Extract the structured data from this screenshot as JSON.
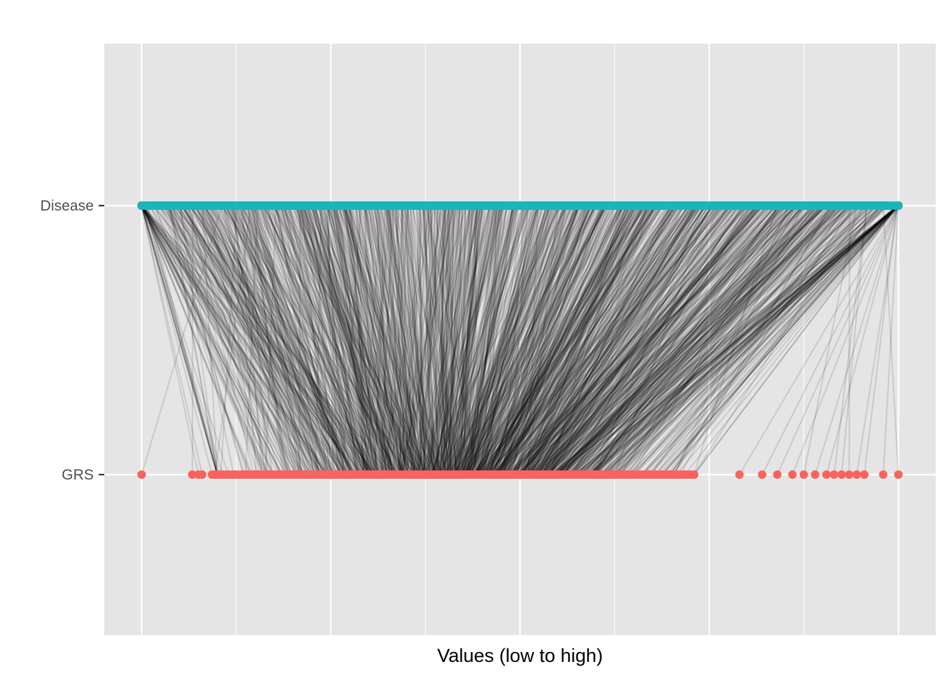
{
  "chart_data": {
    "type": "scatter",
    "title": "",
    "xlabel": "Values (low to high)",
    "ylabel": "",
    "xlim": [
      0,
      1
    ],
    "y_categories": [
      "Disease",
      "GRS"
    ],
    "x_tick_labels_shown": false,
    "x_gridlines": [
      0,
      0.125,
      0.25,
      0.375,
      0.5,
      0.625,
      0.75,
      0.875,
      1
    ],
    "grid": true,
    "series": [
      {
        "name": "Disease",
        "y": "Disease",
        "color": "#1ab5b9",
        "distribution": "dense continuous band",
        "x_range": [
          0,
          1
        ]
      },
      {
        "name": "GRS",
        "y": "GRS",
        "color": "#f8635e",
        "distribution": "dense band with sparse tails",
        "x_range": [
          0,
          1
        ],
        "dense_x_range": [
          0.1,
          0.73
        ],
        "sparse_x": [
          0.0,
          0.067,
          0.075,
          0.08,
          0.093,
          0.097,
          0.103,
          0.79,
          0.82,
          0.84,
          0.86,
          0.875,
          0.89,
          0.905,
          0.915,
          0.925,
          0.935,
          0.945,
          0.955,
          0.98,
          1.0
        ]
      },
      {
        "name": "links",
        "type": "segments",
        "color": "#000000",
        "opacity": 0.12,
        "from": "Disease",
        "to": "GRS",
        "note_from_chart": ""
      }
    ],
    "colors": {
      "panel": "#e5e5e5",
      "grid": "#ffffff",
      "link": "#000000"
    }
  }
}
